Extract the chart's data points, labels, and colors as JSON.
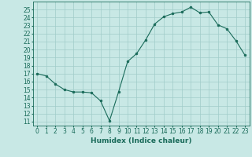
{
  "x": [
    0,
    1,
    2,
    3,
    4,
    5,
    6,
    7,
    8,
    9,
    10,
    11,
    12,
    13,
    14,
    15,
    16,
    17,
    18,
    19,
    20,
    21,
    22,
    23
  ],
  "y": [
    17,
    16.7,
    15.7,
    15,
    14.7,
    14.7,
    14.6,
    13.6,
    11.1,
    14.7,
    18.5,
    19.5,
    21.2,
    23.2,
    24.1,
    24.5,
    24.7,
    25.3,
    24.6,
    24.7,
    23.1,
    22.6,
    21.1,
    19.3
  ],
  "line_color": "#1a6b5a",
  "marker_color": "#1a6b5a",
  "bg_color": "#c8e8e5",
  "grid_color": "#a0ccc9",
  "xlabel": "Humidex (Indice chaleur)",
  "xlim": [
    -0.5,
    23.5
  ],
  "ylim": [
    10.5,
    26.0
  ],
  "yticks": [
    11,
    12,
    13,
    14,
    15,
    16,
    17,
    18,
    19,
    20,
    21,
    22,
    23,
    24,
    25
  ],
  "xticks": [
    0,
    1,
    2,
    3,
    4,
    5,
    6,
    7,
    8,
    9,
    10,
    11,
    12,
    13,
    14,
    15,
    16,
    17,
    18,
    19,
    20,
    21,
    22,
    23
  ],
  "tick_fontsize": 5.5,
  "label_fontsize": 6.5,
  "linewidth": 0.8,
  "markersize": 2.0
}
